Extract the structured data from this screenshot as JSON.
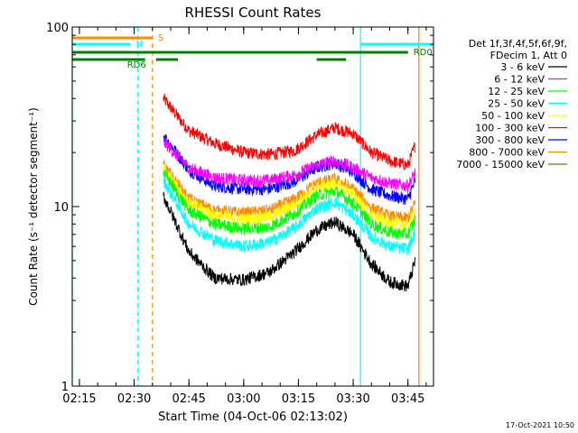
{
  "chart_data": {
    "type": "line",
    "title": "RHESSI Count Rates",
    "xlabel": "Start Time (04-Oct-06 02:13:02)",
    "ylabel": "Count Rate (s⁻¹ detector segment⁻¹)",
    "y_scale": "log",
    "xlim": [
      "02:13:02",
      "03:52:00"
    ],
    "ylim": [
      1,
      100
    ],
    "x_ticks": [
      "02:15",
      "02:30",
      "02:45",
      "03:00",
      "03:15",
      "03:30",
      "03:45"
    ],
    "y_ticks": [
      "1",
      "10",
      "100"
    ],
    "grid": false,
    "legend_position": "right",
    "legend_header": [
      "Det 1f,3f,4f,5f,6f,9f,",
      "FDecim 1, Att 0"
    ],
    "series": [
      {
        "name": "3 - 6 keV",
        "color": "#000000",
        "x": [
          "02:38",
          "02:45",
          "02:52",
          "03:00",
          "03:07",
          "03:14",
          "03:20",
          "03:25",
          "03:30",
          "03:35",
          "03:40",
          "03:45",
          "03:47"
        ],
        "values": [
          11.5,
          5.6,
          4.0,
          3.9,
          4.3,
          5.6,
          7.4,
          8.2,
          7.0,
          4.8,
          3.8,
          3.6,
          5.0
        ]
      },
      {
        "name": "6 - 12 keV",
        "color": "#ff00ff",
        "x": [
          "02:38",
          "02:45",
          "02:52",
          "03:00",
          "03:07",
          "03:14",
          "03:20",
          "03:25",
          "03:30",
          "03:35",
          "03:40",
          "03:45",
          "03:47"
        ],
        "values": [
          23,
          16.5,
          14.5,
          14,
          14,
          15,
          17,
          18,
          16.5,
          14.5,
          13.5,
          13,
          15.5
        ]
      },
      {
        "name": "12 - 25 keV",
        "color": "#00ff00",
        "x": [
          "02:38",
          "02:45",
          "02:52",
          "03:00",
          "03:07",
          "03:14",
          "03:20",
          "03:25",
          "03:30",
          "03:35",
          "03:40",
          "03:45",
          "03:47"
        ],
        "values": [
          15.5,
          9.5,
          8.0,
          7.5,
          7.7,
          9.2,
          11.5,
          12.2,
          10.5,
          8.0,
          7.2,
          7.0,
          8.5
        ]
      },
      {
        "name": "25 - 50 keV",
        "color": "#00ffff",
        "x": [
          "02:38",
          "02:45",
          "02:52",
          "03:00",
          "03:07",
          "03:14",
          "03:20",
          "03:25",
          "03:30",
          "03:35",
          "03:40",
          "03:45",
          "03:47"
        ],
        "values": [
          14,
          8.0,
          6.5,
          6.0,
          6.3,
          7.6,
          9.8,
          10.6,
          9.0,
          6.8,
          6.0,
          5.8,
          7.2
        ]
      },
      {
        "name": "50 - 100 keV",
        "color": "#ffff00",
        "x": [
          "02:38",
          "02:45",
          "02:52",
          "03:00",
          "03:07",
          "03:14",
          "03:20",
          "03:25",
          "03:30",
          "03:35",
          "03:40",
          "03:45",
          "03:47"
        ],
        "values": [
          16.5,
          10.5,
          9.0,
          8.5,
          8.8,
          10.3,
          12.8,
          13.4,
          11.7,
          9.0,
          8.1,
          7.9,
          9.5
        ]
      },
      {
        "name": "100 - 300 keV",
        "color": "#ff0000",
        "x": [
          "02:38",
          "02:45",
          "02:52",
          "03:00",
          "03:07",
          "03:14",
          "03:20",
          "03:25",
          "03:30",
          "03:35",
          "03:40",
          "03:45",
          "03:47"
        ],
        "values": [
          40,
          26.5,
          22.5,
          20,
          19.5,
          20.5,
          25,
          27.5,
          25.5,
          20,
          18,
          17,
          22
        ]
      },
      {
        "name": "300 - 800 keV",
        "color": "#0000ff",
        "x": [
          "02:38",
          "02:45",
          "02:52",
          "03:00",
          "03:07",
          "03:14",
          "03:20",
          "03:25",
          "03:30",
          "03:35",
          "03:40",
          "03:45",
          "03:47"
        ],
        "values": [
          25,
          16,
          13,
          12.5,
          12.5,
          13.8,
          16.5,
          17.5,
          15.5,
          12.5,
          11.5,
          11,
          14
        ]
      },
      {
        "name": "800 - 7000 keV",
        "color": "#ff8c00",
        "x": [
          "02:38",
          "02:45",
          "02:52",
          "03:00",
          "03:07",
          "03:14",
          "03:20",
          "03:25",
          "03:30",
          "03:35",
          "03:40",
          "03:45",
          "03:47"
        ],
        "values": [
          17,
          11,
          9.5,
          9.2,
          9.5,
          11,
          13.5,
          14.2,
          12.5,
          9.8,
          8.8,
          8.6,
          10.5
        ]
      },
      {
        "name": "7000 - 15000 keV",
        "color": "#8b6914",
        "x": [],
        "values": []
      }
    ],
    "flags": [
      {
        "label": "S",
        "color": "#ff8c00",
        "segments": [
          [
            "02:13:02",
            "02:35:00"
          ]
        ]
      },
      {
        "label": "N",
        "color": "#00ffff",
        "segments": [
          [
            "02:13:02",
            "02:29:00"
          ],
          [
            "03:32:00",
            "03:52:00"
          ]
        ]
      },
      {
        "label": "RD0",
        "color": "#008000",
        "segments": [
          [
            "02:13:02",
            "03:45:00"
          ]
        ]
      },
      {
        "label": "RD6",
        "color": "#008000",
        "segments": [
          [
            "02:13:02",
            "02:33:00"
          ],
          [
            "02:36:00",
            "02:42:00"
          ],
          [
            "03:20:00",
            "03:28:00"
          ]
        ]
      }
    ],
    "vertical_markers": [
      {
        "time": "02:13:02",
        "color": "#00ffff",
        "style": "solid"
      },
      {
        "time": "02:31:00",
        "color": "#00ffff",
        "style": "dashed"
      },
      {
        "time": "02:35:00",
        "color": "#ff8c00",
        "style": "dashed"
      },
      {
        "time": "03:32:00",
        "color": "#00ffff",
        "style": "solid"
      },
      {
        "time": "03:48:00",
        "color": "#ff8c00",
        "style": "dashed"
      },
      {
        "time": "03:48:00",
        "color": "#ff8c00",
        "style": "solid"
      }
    ]
  },
  "footer": {
    "timestamp": "17-Oct-2021 10:50"
  }
}
